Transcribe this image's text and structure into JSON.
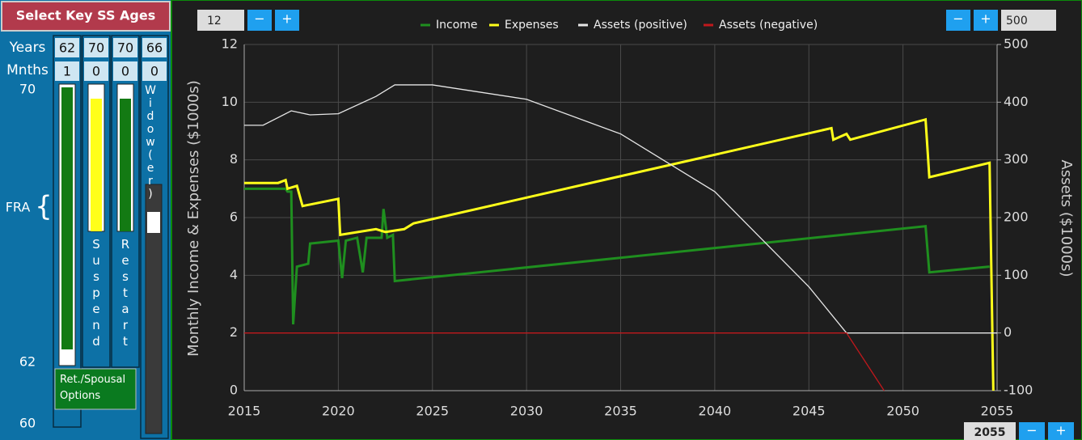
{
  "panel": {
    "title": "Select Key SS Ages",
    "row_labels": [
      "Years",
      "Mnths"
    ],
    "years": [
      62,
      70,
      70,
      66
    ],
    "months": [
      1,
      0,
      0,
      0
    ],
    "scale_labels": [
      70,
      62,
      60
    ],
    "fra": "FRA",
    "brace": "{",
    "columns": [
      "Suspend",
      "Restart",
      "Widow(er)"
    ],
    "options_button": "Ret./Spousal Options"
  },
  "controls": {
    "left_value": 12,
    "right_value": 500,
    "end_year": 2055,
    "minus": "−",
    "plus": "+"
  },
  "chart_data": {
    "type": "line",
    "ylabel": "Monthly Income & Expenses ($1000s)",
    "y2label": "Assets ($1000s)",
    "xlim": [
      2015,
      2055
    ],
    "xticks": [
      2015,
      2020,
      2025,
      2030,
      2035,
      2040,
      2045,
      2050,
      2055
    ],
    "ylim": [
      0,
      12
    ],
    "yticks": [
      0,
      2,
      4,
      6,
      8,
      10,
      12
    ],
    "y2lim": [
      -100,
      500
    ],
    "y2ticks": [
      -100,
      0,
      100,
      200,
      300,
      400,
      500
    ],
    "grid": true,
    "legend": "top",
    "series": [
      {
        "name": "Income",
        "color": "#1f8f1f",
        "x": [
          2015,
          2017.2,
          2017.3,
          2017.5,
          2017.6,
          2017.8,
          2018.4,
          2018.5,
          2020,
          2020.2,
          2020.4,
          2021,
          2021.3,
          2021.5,
          2022.3,
          2022.4,
          2022.6,
          2022.9,
          2023,
          2051.2,
          2051.4,
          2054.6
        ],
        "values": [
          7.0,
          7.0,
          6.9,
          6.9,
          2.3,
          4.3,
          4.4,
          5.1,
          5.2,
          3.9,
          5.2,
          5.3,
          4.1,
          5.3,
          5.3,
          6.3,
          5.3,
          5.4,
          3.8,
          5.7,
          4.1,
          4.3
        ]
      },
      {
        "name": "Expenses",
        "color": "#ffff1a",
        "x": [
          2015,
          2016.8,
          2017.2,
          2017.3,
          2017.8,
          2018.1,
          2020,
          2020.1,
          2022,
          2022.5,
          2023.5,
          2024,
          2046.2,
          2046.3,
          2047,
          2047.2,
          2051.2,
          2051.4,
          2054.6,
          2054.8
        ],
        "values": [
          7.2,
          7.2,
          7.3,
          7.0,
          7.1,
          6.4,
          6.65,
          5.4,
          5.6,
          5.5,
          5.6,
          5.8,
          9.1,
          8.7,
          8.9,
          8.7,
          9.4,
          7.4,
          7.9,
          0
        ]
      },
      {
        "name": "Assets (positive)",
        "color": "#e6e6e6",
        "axis": "y2",
        "x": [
          2015,
          2016,
          2017.5,
          2018.5,
          2020,
          2022,
          2023,
          2025,
          2030,
          2035,
          2040,
          2045,
          2047,
          2055
        ],
        "values": [
          360,
          360,
          385,
          378,
          380,
          410,
          430,
          430,
          405,
          345,
          245,
          80,
          0,
          0
        ]
      },
      {
        "name": "Assets (negative)",
        "color": "#c0181c",
        "axis": "y2",
        "x": [
          2015,
          2047,
          2049
        ],
        "values": [
          0,
          0,
          -100
        ]
      }
    ]
  }
}
